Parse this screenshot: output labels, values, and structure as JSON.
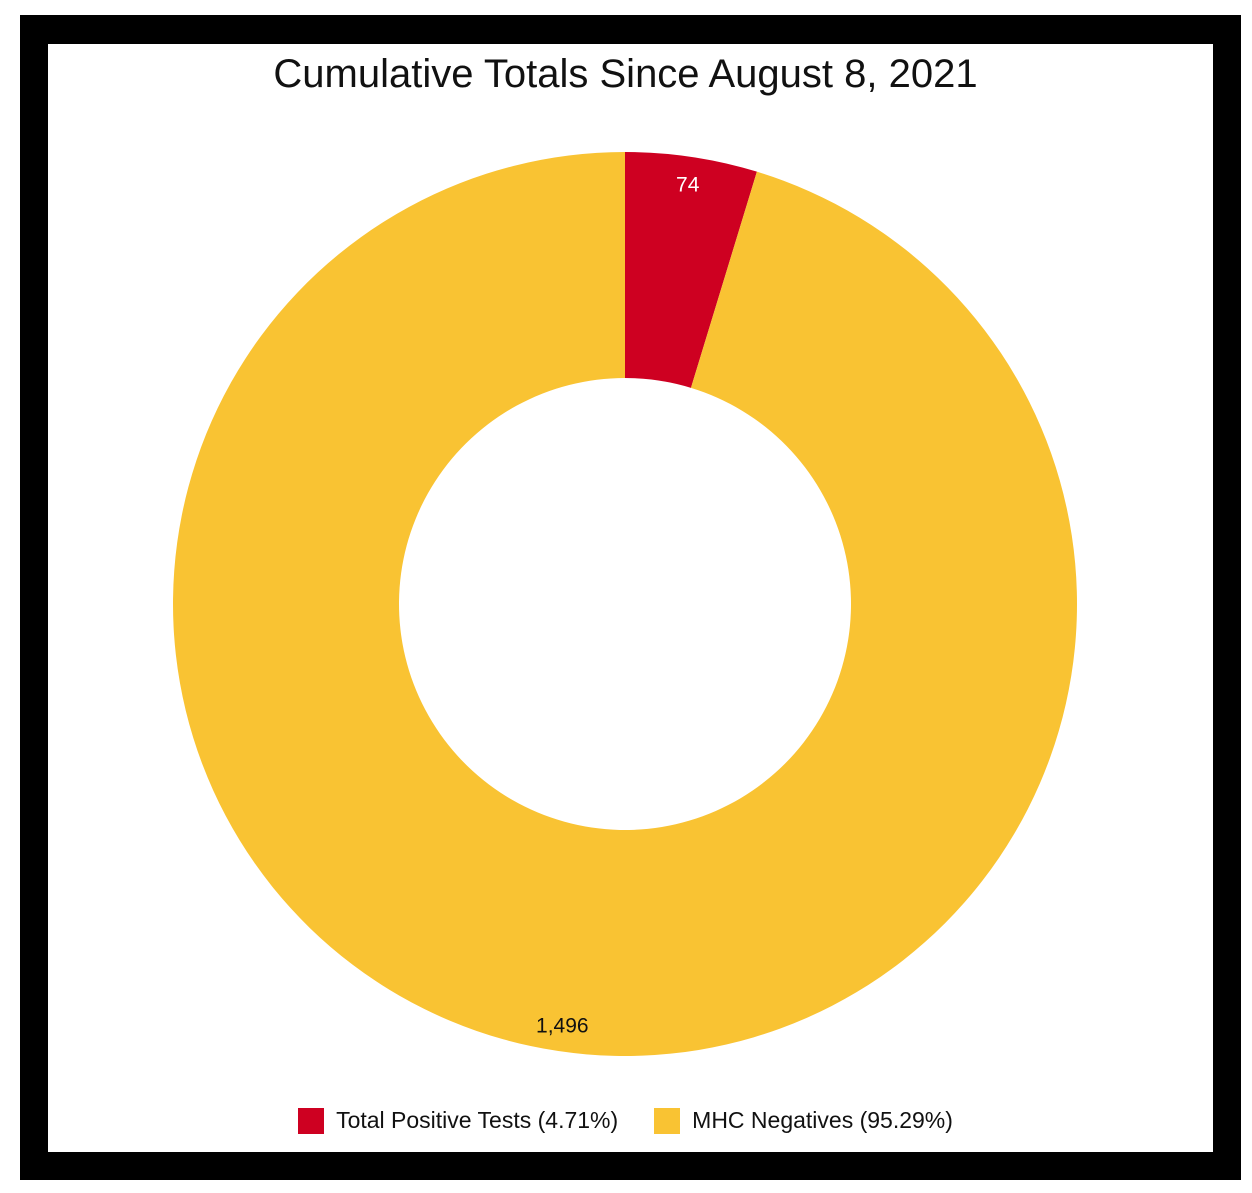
{
  "chart_data": {
    "type": "pie",
    "donut": true,
    "title": "Cumulative Totals Since August 8, 2021",
    "legend_position": "bottom",
    "series": [
      {
        "name": "Total Positive Tests",
        "value": 74,
        "value_label": "74",
        "percent": 4.71,
        "legend_label": "Total Positive Tests (4.71%)",
        "color": "#CE0021",
        "label_color": "#ffffff"
      },
      {
        "name": "MHC Negatives",
        "value": 1496,
        "value_label": "1,496",
        "percent": 95.29,
        "legend_label": "MHC Negatives (95.29%)",
        "color": "#F9C333",
        "label_color": "#111111"
      }
    ]
  }
}
